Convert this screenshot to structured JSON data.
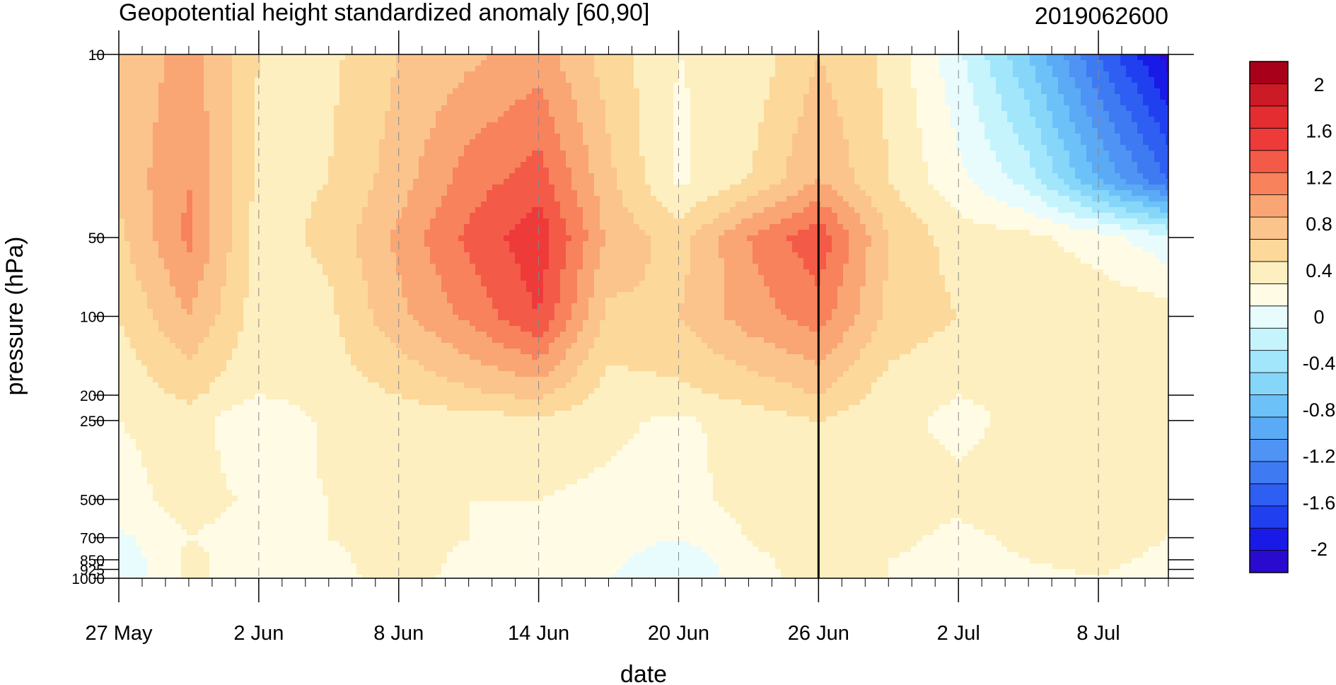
{
  "chart_data": {
    "type": "contour",
    "title": "Geopotential height standardized anomaly [60,90]",
    "right_title": "2019062600",
    "xlabel": "date",
    "ylabel": "pressure (hPa)",
    "x_ticks": [
      {
        "label": "27 May",
        "day": 0
      },
      {
        "label": "2 Jun",
        "day": 6
      },
      {
        "label": "8 Jun",
        "day": 12
      },
      {
        "label": "14 Jun",
        "day": 18
      },
      {
        "label": "20 Jun",
        "day": 24
      },
      {
        "label": "26 Jun",
        "day": 30
      },
      {
        "label": "2 Jul",
        "day": 36
      },
      {
        "label": "8 Jul",
        "day": 42
      }
    ],
    "x_range_days": [
      0,
      45
    ],
    "y_scale": "log",
    "y_range_hPa": [
      1000,
      10
    ],
    "y_ticks": [
      10,
      50,
      100,
      200,
      250,
      500,
      700,
      850,
      925,
      1000
    ],
    "current_date_marker": "26 Jun",
    "colorbar": {
      "levels": [
        -2.2,
        -2,
        -1.8,
        -1.6,
        -1.4,
        -1.2,
        -1,
        -0.8,
        -0.6,
        -0.4,
        -0.2,
        0,
        0.2,
        0.4,
        0.6,
        0.8,
        1,
        1.2,
        1.4,
        1.6,
        1.8,
        2,
        2.2
      ],
      "colors": [
        "#2b0ad0",
        "#1a1ae6",
        "#2040f0",
        "#2f5ef2",
        "#3e7af2",
        "#4f93f4",
        "#5aaaf6",
        "#6cc2f8",
        "#86d6fa",
        "#a2e6fc",
        "#c6f4fd",
        "#e8fcfd",
        "#fffbe5",
        "#fdefbf",
        "#fcd89b",
        "#fbc48c",
        "#f9a674",
        "#f7825b",
        "#f45a48",
        "#ef3a3a",
        "#e42d30",
        "#cc1a26",
        "#a8001a"
      ],
      "labels": [
        "2",
        "1.6",
        "1.2",
        "0.8",
        "0.4",
        "0",
        "-0.4",
        "-0.8",
        "-1.2",
        "-1.6",
        "-2"
      ]
    },
    "fields": {
      "days": [
        0,
        3,
        6,
        9,
        12,
        15,
        18,
        21,
        24,
        27,
        30,
        33,
        36,
        39,
        42,
        45
      ],
      "levels_hPa": [
        10,
        30,
        50,
        100,
        200,
        250,
        500,
        700,
        850,
        1000
      ],
      "values": [
        [
          0.8,
          1.1,
          0.6,
          0.55,
          0.8,
          0.95,
          1.1,
          0.7,
          0.4,
          0.45,
          0.8,
          0.55,
          0.05,
          -0.6,
          -1.4,
          -2.1
        ],
        [
          0.85,
          1.2,
          0.55,
          0.6,
          0.9,
          1.3,
          1.5,
          0.85,
          0.35,
          0.6,
          1.0,
          0.6,
          0.25,
          -0.1,
          -0.8,
          -1.4
        ],
        [
          0.75,
          1.25,
          0.5,
          0.65,
          1.05,
          1.45,
          1.75,
          0.95,
          0.7,
          1.2,
          1.55,
          0.8,
          0.5,
          0.45,
          0.3,
          0.05
        ],
        [
          0.6,
          1.0,
          0.5,
          0.55,
          0.95,
          1.25,
          1.6,
          0.75,
          0.8,
          1.1,
          1.3,
          0.75,
          0.6,
          0.6,
          0.55,
          0.5
        ],
        [
          0.45,
          0.65,
          0.4,
          0.5,
          0.6,
          0.75,
          0.85,
          0.5,
          0.55,
          0.65,
          0.8,
          0.5,
          0.4,
          0.45,
          0.4,
          0.45
        ],
        [
          0.4,
          0.5,
          0.2,
          0.45,
          0.5,
          0.5,
          0.55,
          0.45,
          0.35,
          0.5,
          0.6,
          0.45,
          0.35,
          0.45,
          0.45,
          0.45
        ],
        [
          0.3,
          0.5,
          0.35,
          0.4,
          0.45,
          0.4,
          0.4,
          0.35,
          0.3,
          0.5,
          0.6,
          0.5,
          0.45,
          0.5,
          0.5,
          0.45
        ],
        [
          0.15,
          0.4,
          0.3,
          0.4,
          0.5,
          0.4,
          0.35,
          0.3,
          0.2,
          0.4,
          0.55,
          0.45,
          0.35,
          0.45,
          0.5,
          0.4
        ],
        [
          0.05,
          0.45,
          0.3,
          0.35,
          0.5,
          0.35,
          0.3,
          0.25,
          0.05,
          0.35,
          0.5,
          0.4,
          0.35,
          0.4,
          0.45,
          0.35
        ],
        [
          0.0,
          0.45,
          0.3,
          0.35,
          0.45,
          0.35,
          0.3,
          0.2,
          0.0,
          0.3,
          0.5,
          0.4,
          0.3,
          0.35,
          0.4,
          0.3
        ]
      ]
    }
  }
}
